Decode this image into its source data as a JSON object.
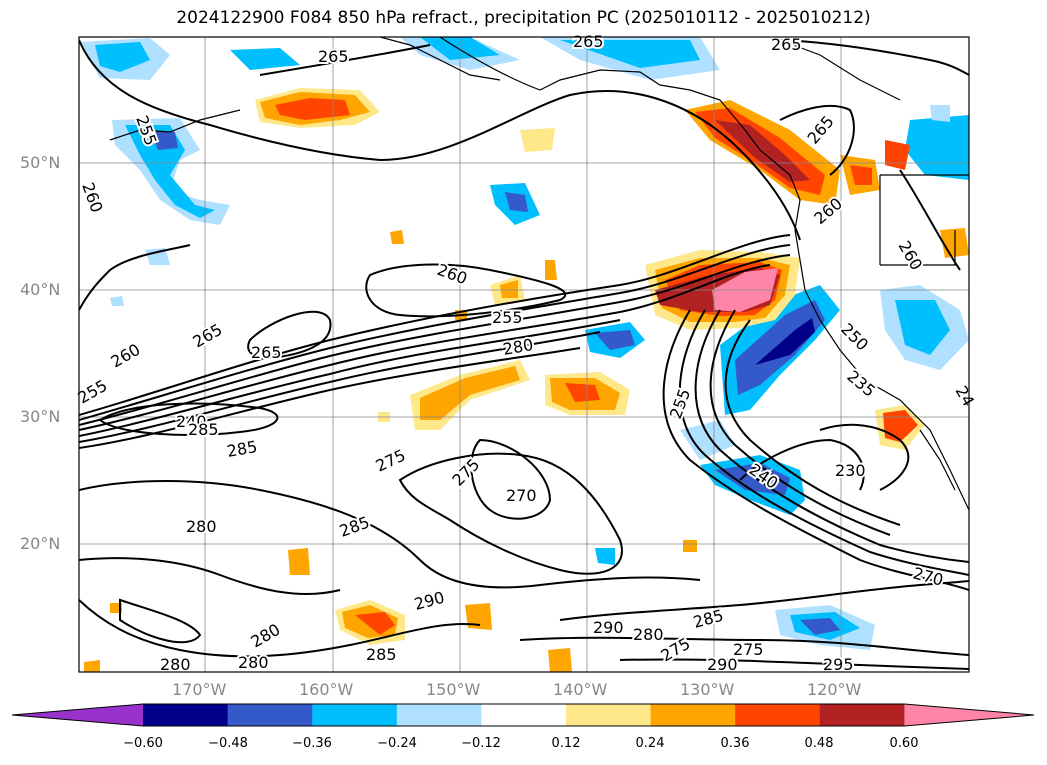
{
  "title": "2024122900 F084 850 hPa refract., precipitation PC (2025010112 - 2025010212)",
  "lat_labels": [
    "50°N",
    "40°N",
    "30°N",
    "20°N"
  ],
  "lon_labels": [
    "170°W",
    "160°W",
    "150°W",
    "140°W",
    "130°W",
    "120°W"
  ],
  "colorbar": {
    "colors": [
      "#9932cc",
      "#00008b",
      "#3459c8",
      "#00bfff",
      "#b0e0ff",
      "#ffffff",
      "#ffe88a",
      "#ffa500",
      "#ff4500",
      "#b22222",
      "#ff85a8"
    ],
    "ticks": [
      "−0.60",
      "−0.48",
      "−0.36",
      "−0.24",
      "−0.12",
      "0.12",
      "0.24",
      "0.36",
      "0.48",
      "0.60"
    ]
  },
  "contour_labels": [
    {
      "text": "265"
    },
    {
      "text": "265"
    },
    {
      "text": "265"
    },
    {
      "text": "260"
    },
    {
      "text": "255"
    },
    {
      "text": "260"
    },
    {
      "text": "265"
    },
    {
      "text": "260"
    },
    {
      "text": "255"
    },
    {
      "text": "280"
    },
    {
      "text": "265"
    },
    {
      "text": "260"
    },
    {
      "text": "255"
    },
    {
      "text": "240"
    },
    {
      "text": "285"
    },
    {
      "text": "285"
    },
    {
      "text": "275"
    },
    {
      "text": "275"
    },
    {
      "text": "270"
    },
    {
      "text": "255"
    },
    {
      "text": "250"
    },
    {
      "text": "260"
    },
    {
      "text": "235"
    },
    {
      "text": "240"
    },
    {
      "text": "230"
    },
    {
      "text": "280"
    },
    {
      "text": "285"
    },
    {
      "text": "270"
    },
    {
      "text": "290"
    },
    {
      "text": "280"
    },
    {
      "text": "280"
    },
    {
      "text": "280"
    },
    {
      "text": "285"
    },
    {
      "text": "290"
    },
    {
      "text": "280"
    },
    {
      "text": "285"
    },
    {
      "text": "275"
    },
    {
      "text": "290"
    },
    {
      "text": "295"
    },
    {
      "text": "275"
    },
    {
      "text": "265"
    },
    {
      "text": "24"
    }
  ]
}
